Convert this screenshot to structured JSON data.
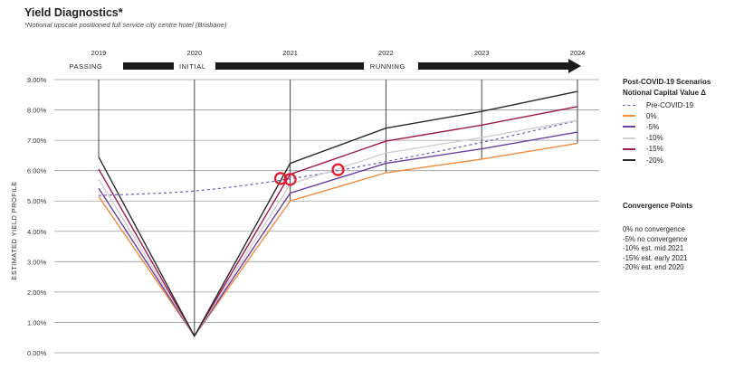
{
  "title": "Yield Diagnostics*",
  "subtitle": "*Notional upscale positioned full service city centre hotel (Brisbane)",
  "phases": [
    "PASSING",
    "INITIAL",
    "RUNNING"
  ],
  "legend": {
    "title": "Post-COVID-19 Scenarios Notional Capital Value Δ",
    "items": [
      {
        "label": "Pre-COVID-19",
        "color": "#6a5cc0",
        "dashed": true
      },
      {
        "label": "0%",
        "color": "#f08a3c"
      },
      {
        "label": "-5%",
        "color": "#6a3fa0"
      },
      {
        "label": "-10%",
        "color": "#cfcfcf"
      },
      {
        "label": "-15%",
        "color": "#a0174f"
      },
      {
        "label": "-20%",
        "color": "#2b2b2b"
      }
    ]
  },
  "convergence": {
    "title": "Convergence Points",
    "items": [
      "0% no convergence",
      "-5% no convergence",
      "-10% est. mid 2021",
      "-15% est. early 2021",
      "-20% est. end 2020"
    ]
  },
  "chart_data": {
    "type": "line",
    "ylabel": "ESTIMATED YIELD PROFILE",
    "x_ticks": [
      "2019",
      "2020",
      "2021",
      "2022",
      "2023",
      "2024"
    ],
    "y_ticks": [
      "0.00%",
      "1.00%",
      "2.00%",
      "3.00%",
      "4.00%",
      "5.00%",
      "6.00%",
      "7.00%",
      "8.00%",
      "9.00%"
    ],
    "ylim": [
      0,
      9
    ],
    "xlim": [
      2019,
      2024
    ],
    "series": [
      {
        "name": "Pre-COVID-19",
        "x": [
          2019,
          2020,
          2021,
          2022,
          2023,
          2024
        ],
        "y": [
          5.18,
          5.33,
          5.73,
          6.3,
          6.93,
          7.65
        ],
        "smooth": true
      },
      {
        "name": "0%",
        "x": [
          2019,
          2020,
          2021,
          2022,
          2023,
          2024
        ],
        "y": [
          5.15,
          0.55,
          5.0,
          5.93,
          6.38,
          6.9
        ]
      },
      {
        "name": "-5%",
        "x": [
          2019,
          2020,
          2021,
          2022,
          2023,
          2024
        ],
        "y": [
          5.42,
          0.55,
          5.26,
          6.24,
          6.72,
          7.27
        ]
      },
      {
        "name": "-10%",
        "x": [
          2019,
          2020,
          2021,
          2022,
          2023,
          2024
        ],
        "y": [
          5.72,
          0.55,
          5.55,
          6.58,
          7.09,
          7.66
        ]
      },
      {
        "name": "-15%",
        "x": [
          2019,
          2020,
          2021,
          2022,
          2023,
          2024
        ],
        "y": [
          6.05,
          0.55,
          5.88,
          6.97,
          7.5,
          8.11
        ]
      },
      {
        "name": "-20%",
        "x": [
          2019,
          2020,
          2021,
          2022,
          2023,
          2024
        ],
        "y": [
          6.45,
          0.55,
          6.24,
          7.4,
          7.95,
          8.61
        ]
      }
    ],
    "convergence_points": [
      {
        "x": 2020.9,
        "y": 5.74
      },
      {
        "x": 2021.0,
        "y": 5.71
      },
      {
        "x": 2021.5,
        "y": 6.03
      }
    ],
    "grid": true,
    "legend_position": "right"
  }
}
